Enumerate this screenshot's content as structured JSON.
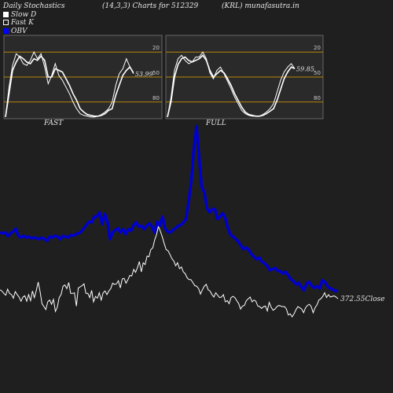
{
  "header": {
    "title": "Daily Stochastics",
    "params": "(14,3,3) Charts for 512329",
    "symbol": "(KRL) munafasutra.in"
  },
  "legend": {
    "slow_d": "Slow  D",
    "fast_k": "Fast K",
    "obv": "OBV"
  },
  "colors": {
    "background": "#1f1f1f",
    "panel": "#2a2a2a",
    "level_line": "#b8860b",
    "price_line": "#ffffff",
    "obv_line": "#0000cc"
  },
  "chart_data": [
    {
      "type": "line",
      "panel_label": "FAST",
      "ylim": [
        0,
        100
      ],
      "level_lines": [
        20,
        50,
        80
      ],
      "ytick_labels": [
        "80",
        "50",
        "20"
      ],
      "last_value_label": "53.99",
      "series": [
        {
          "name": "Slow  D",
          "values": [
            2,
            30,
            58,
            68,
            75,
            72,
            68,
            66,
            72,
            70,
            75,
            70,
            50,
            50,
            60,
            58,
            56,
            48,
            40,
            30,
            22,
            12,
            8,
            5,
            4,
            3,
            3,
            4,
            6,
            10,
            12,
            28,
            40,
            52,
            58,
            62,
            55
          ]
        },
        {
          "name": "Fast K",
          "values": [
            2,
            38,
            64,
            78,
            74,
            66,
            64,
            70,
            80,
            72,
            78,
            62,
            42,
            52,
            66,
            52,
            46,
            38,
            30,
            20,
            12,
            6,
            4,
            3,
            2,
            2,
            3,
            5,
            8,
            12,
            20,
            40,
            54,
            60,
            72,
            62,
            54
          ]
        }
      ]
    },
    {
      "type": "line",
      "panel_label": "FULL",
      "ylim": [
        0,
        100
      ],
      "level_lines": [
        20,
        50,
        80
      ],
      "ytick_labels": [
        "80",
        "50",
        "20"
      ],
      "last_value_label": "59.85",
      "series": [
        {
          "name": "Slow  D",
          "values": [
            2,
            20,
            50,
            65,
            72,
            74,
            70,
            68,
            70,
            72,
            76,
            70,
            58,
            50,
            54,
            58,
            55,
            48,
            40,
            30,
            22,
            14,
            8,
            5,
            4,
            3,
            3,
            4,
            6,
            9,
            12,
            22,
            35,
            48,
            56,
            62,
            60
          ]
        },
        {
          "name": "Fast K",
          "values": [
            2,
            25,
            58,
            72,
            76,
            70,
            66,
            68,
            74,
            74,
            80,
            72,
            55,
            48,
            58,
            62,
            54,
            45,
            36,
            26,
            18,
            10,
            6,
            4,
            3,
            3,
            3,
            5,
            8,
            12,
            18,
            32,
            46,
            56,
            62,
            66,
            60
          ]
        }
      ]
    },
    {
      "type": "line",
      "panel_label": "",
      "last_value_label": "372.55",
      "last_value_suffix": "Close",
      "series": [
        {
          "name": "Close",
          "values": [
            384,
            382,
            378,
            375,
            385,
            378,
            376,
            370,
            381,
            376,
            372,
            365,
            372,
            374,
            365,
            376,
            366,
            382,
            371,
            383,
            397,
            381,
            361,
            356,
            351,
            364,
            367,
            360,
            368,
            348,
            355,
            371,
            376,
            390,
            392,
            386,
            396,
            378,
            378,
            379,
            357,
            387,
            389,
            391,
            394,
            378,
            378,
            371,
            383,
            364,
            373,
            370,
            379,
            367,
            379,
            382,
            376,
            382,
            386,
            395,
            393,
            394,
            399,
            387,
            402,
            403,
            395,
            401,
            408,
            407,
            418,
            413,
            421,
            431,
            414,
            429,
            426,
            440,
            439,
            451,
            454,
            467,
            476,
            490,
            481,
            472,
            461,
            451,
            449,
            443,
            436,
            432,
            424,
            429,
            419,
            422,
            414,
            411,
            404,
            401,
            401,
            396,
            391,
            390,
            386,
            377,
            384,
            390,
            393,
            384,
            382,
            376,
            372,
            379,
            375,
            371,
            372,
            376,
            364,
            366,
            361,
            371,
            373,
            371,
            366,
            361,
            352,
            357,
            358,
            366,
            369,
            372,
            364,
            367,
            365,
            357,
            356,
            353,
            356,
            357,
            349,
            363,
            355,
            350,
            352,
            356,
            358,
            357,
            356,
            356,
            352,
            342,
            344,
            339,
            344,
            351,
            356,
            354,
            352,
            346,
            354,
            358,
            360,
            356,
            346,
            354,
            359,
            367,
            369,
            373,
            379,
            371,
            376,
            372,
            373,
            374,
            372,
            369
          ]
        }
      ]
    },
    {
      "type": "line",
      "panel_label": "",
      "series": [
        {
          "name": "OBV",
          "values": [
            230,
            228,
            230,
            221,
            228,
            232,
            239,
            222,
            218,
            222,
            218,
            220,
            216,
            218,
            216,
            214,
            218,
            214,
            210,
            220,
            218,
            222,
            220,
            214,
            222,
            220,
            218,
            224,
            222,
            226,
            228,
            232,
            240,
            248,
            256,
            254,
            268,
            268,
            278,
            250,
            274,
            256,
            214,
            230,
            236,
            240,
            230,
            238,
            226,
            238,
            234,
            248,
            254,
            244,
            246,
            238,
            246,
            252,
            244,
            230,
            256,
            246,
            268,
            240,
            232,
            230,
            236,
            240,
            246,
            248,
            254,
            262,
            304,
            352,
            432,
            484,
            410,
            338,
            326,
            288,
            278,
            286,
            286,
            262,
            268,
            276,
            264,
            240,
            224,
            220,
            214,
            208,
            198,
            190,
            194,
            188,
            178,
            172,
            166,
            170,
            160,
            156,
            150,
            140,
            142,
            145,
            139,
            137,
            132,
            136,
            128,
            118,
            114,
            106,
            110,
            100,
            92,
            108,
            112,
            102,
            98,
            102,
            96,
            116,
            112,
            102,
            96,
            94,
            90,
            92
          ]
        }
      ]
    }
  ]
}
